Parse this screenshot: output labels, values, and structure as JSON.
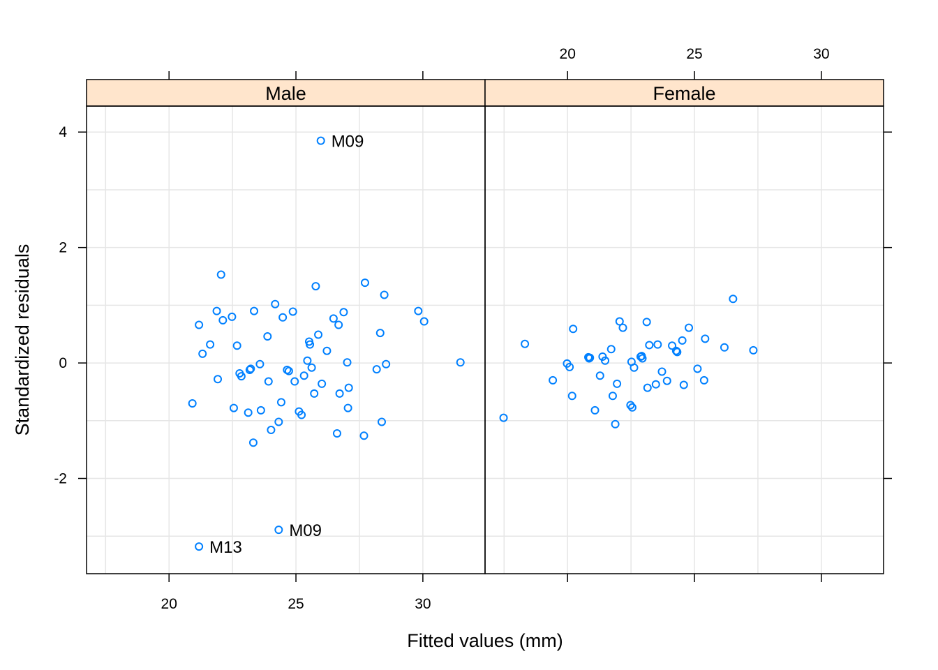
{
  "chart_data": {
    "type": "scatter",
    "xlabel": "Fitted values (mm)",
    "ylabel": "Standardized residuals",
    "xlim": [
      16.75,
      32.45
    ],
    "ylim": [
      -3.65,
      4.45
    ],
    "x_ticks": [
      20,
      25,
      30
    ],
    "y_ticks": [
      4,
      2,
      0,
      -2
    ],
    "y_tick_labels": [
      "4",
      "2",
      "0",
      "-2"
    ],
    "grid": true,
    "colors": {
      "strip": "#ffe5cc",
      "point": "#0080ff",
      "grid": "#e6e6e6"
    },
    "panels": [
      {
        "name": "Male",
        "points": [
          [
            20.92,
            -0.7
          ],
          [
            21.18,
            0.66
          ],
          [
            21.32,
            0.16
          ],
          [
            21.62,
            0.32
          ],
          [
            21.88,
            0.9
          ],
          [
            21.92,
            -0.28
          ],
          [
            22.05,
            1.53
          ],
          [
            22.12,
            0.74
          ],
          [
            22.48,
            0.8
          ],
          [
            22.55,
            -0.78
          ],
          [
            22.68,
            0.3
          ],
          [
            22.78,
            -0.18
          ],
          [
            22.85,
            -0.23
          ],
          [
            23.12,
            -0.86
          ],
          [
            23.18,
            -0.12
          ],
          [
            23.22,
            -0.1
          ],
          [
            23.32,
            -1.38
          ],
          [
            23.35,
            0.9
          ],
          [
            23.58,
            -0.02
          ],
          [
            23.62,
            -0.82
          ],
          [
            23.88,
            0.46
          ],
          [
            23.92,
            -0.32
          ],
          [
            24.02,
            -1.16
          ],
          [
            24.18,
            1.02
          ],
          [
            24.32,
            -1.02
          ],
          [
            24.42,
            -0.68
          ],
          [
            24.48,
            0.79
          ],
          [
            24.65,
            -0.12
          ],
          [
            24.72,
            -0.14
          ],
          [
            24.88,
            0.89
          ],
          [
            24.95,
            -0.32
          ],
          [
            25.12,
            -0.84
          ],
          [
            25.22,
            -0.9
          ],
          [
            25.32,
            -0.22
          ],
          [
            25.45,
            0.04
          ],
          [
            25.52,
            0.37
          ],
          [
            25.55,
            0.32
          ],
          [
            25.62,
            -0.08
          ],
          [
            25.72,
            -0.53
          ],
          [
            25.78,
            1.33
          ],
          [
            25.88,
            0.49
          ],
          [
            26.02,
            -0.36
          ],
          [
            26.22,
            0.21
          ],
          [
            26.48,
            0.77
          ],
          [
            26.62,
            -1.22
          ],
          [
            26.68,
            0.66
          ],
          [
            26.72,
            -0.53
          ],
          [
            26.88,
            0.88
          ],
          [
            27.02,
            0.01
          ],
          [
            27.05,
            -0.78
          ],
          [
            27.08,
            -0.43
          ],
          [
            27.68,
            -1.26
          ],
          [
            27.72,
            1.39
          ],
          [
            28.18,
            -0.11
          ],
          [
            28.32,
            0.52
          ],
          [
            28.38,
            -1.02
          ],
          [
            28.48,
            1.18
          ],
          [
            28.55,
            -0.02
          ],
          [
            29.82,
            0.9
          ],
          [
            30.05,
            0.72
          ],
          [
            31.48,
            0.01
          ]
        ],
        "outliers": [
          {
            "label": "M09",
            "x": 25.98,
            "y": 3.85
          },
          {
            "label": "M09",
            "x": 24.32,
            "y": -2.89
          },
          {
            "label": "M13",
            "x": 21.18,
            "y": -3.18
          }
        ]
      },
      {
        "name": "Female",
        "points": [
          [
            17.48,
            -0.95
          ],
          [
            18.32,
            0.33
          ],
          [
            19.42,
            -0.3
          ],
          [
            19.98,
            -0.01
          ],
          [
            20.08,
            -0.07
          ],
          [
            20.18,
            -0.57
          ],
          [
            20.22,
            0.59
          ],
          [
            20.82,
            0.1
          ],
          [
            20.85,
            0.08
          ],
          [
            20.88,
            0.09
          ],
          [
            21.08,
            -0.82
          ],
          [
            21.28,
            -0.22
          ],
          [
            21.38,
            0.11
          ],
          [
            21.48,
            0.04
          ],
          [
            21.72,
            0.24
          ],
          [
            21.78,
            -0.57
          ],
          [
            21.88,
            -1.06
          ],
          [
            21.95,
            -0.36
          ],
          [
            22.05,
            0.72
          ],
          [
            22.18,
            0.61
          ],
          [
            22.48,
            -0.73
          ],
          [
            22.52,
            0.02
          ],
          [
            22.55,
            -0.77
          ],
          [
            22.62,
            -0.08
          ],
          [
            22.88,
            0.11
          ],
          [
            22.92,
            0.12
          ],
          [
            22.95,
            0.08
          ],
          [
            23.12,
            0.71
          ],
          [
            23.15,
            -0.43
          ],
          [
            23.22,
            0.31
          ],
          [
            23.48,
            -0.37
          ],
          [
            23.55,
            0.32
          ],
          [
            23.72,
            -0.15
          ],
          [
            23.92,
            -0.31
          ],
          [
            24.12,
            0.3
          ],
          [
            24.28,
            0.21
          ],
          [
            24.32,
            0.19
          ],
          [
            24.52,
            0.39
          ],
          [
            24.58,
            -0.38
          ],
          [
            24.78,
            0.61
          ],
          [
            25.12,
            -0.1
          ],
          [
            25.38,
            -0.3
          ],
          [
            25.42,
            0.42
          ],
          [
            26.18,
            0.27
          ],
          [
            26.52,
            1.11
          ],
          [
            27.32,
            0.22
          ]
        ],
        "outliers": []
      }
    ]
  }
}
